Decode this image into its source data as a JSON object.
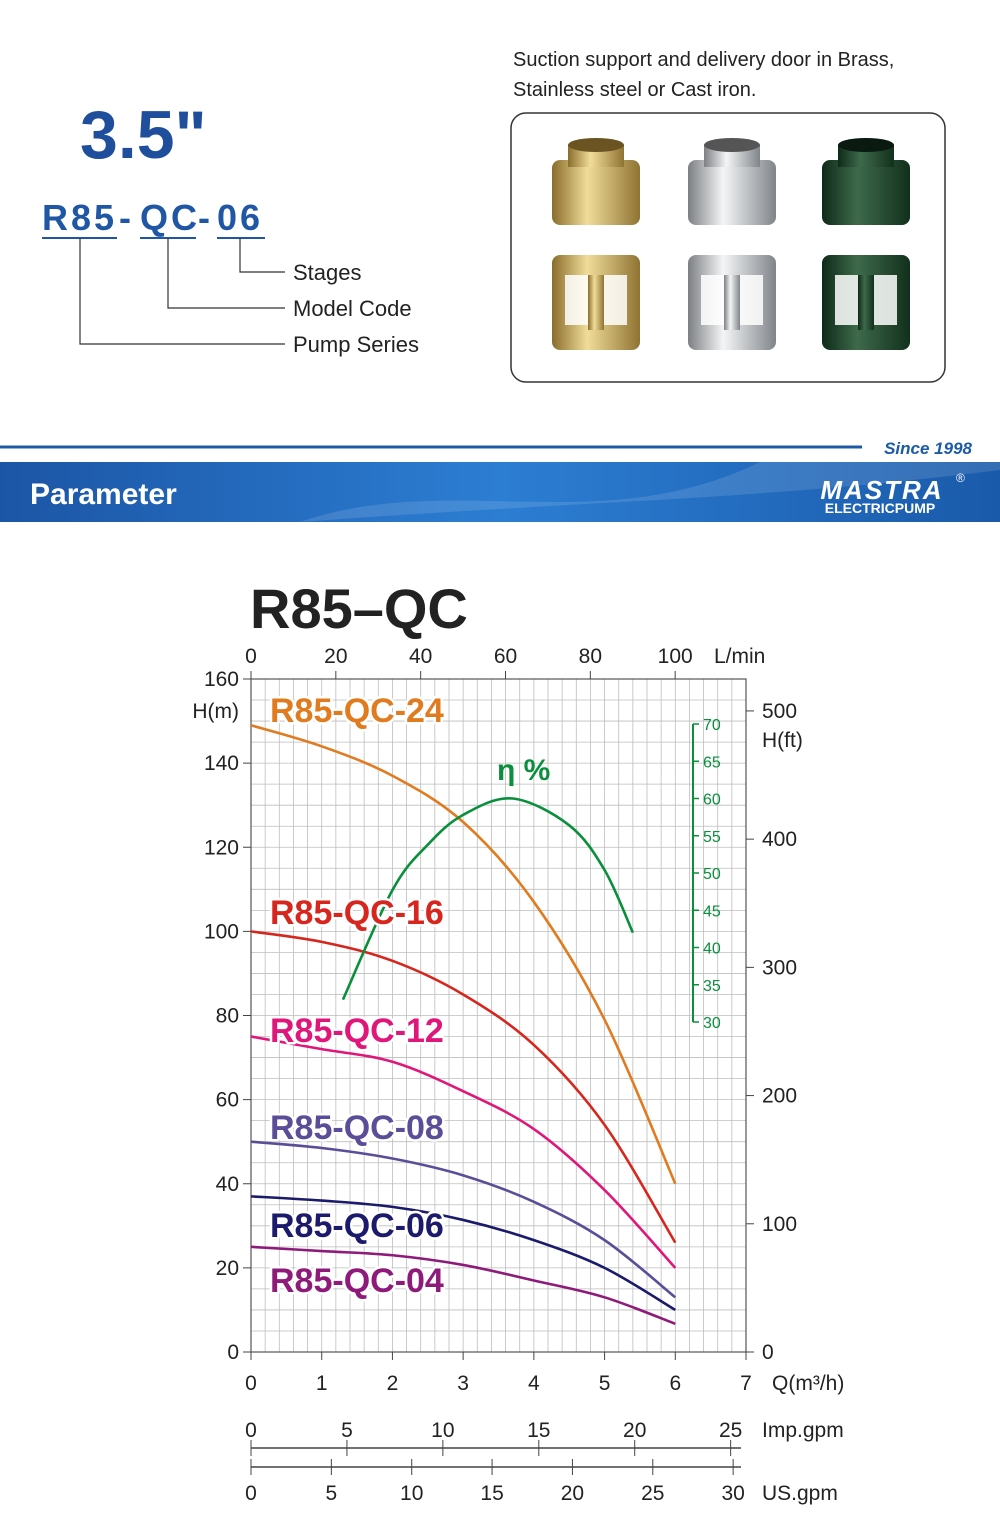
{
  "header": {
    "size": "3.5\"",
    "code_parts": [
      "R85",
      "-",
      "QC",
      "-",
      "06"
    ],
    "code_labels": [
      "Stages",
      "Model Code",
      "Pump Series"
    ],
    "material_text": [
      "Suction support and delivery door in Brass,",
      "Stainless steel or Cast iron."
    ]
  },
  "banner": {
    "since": "Since 1998",
    "title": "Parameter",
    "logo": "MASTRA",
    "logo_sub": "ELECTRICPUMP",
    "registered": "®"
  },
  "chart_data": {
    "type": "line",
    "title": "R85–QC",
    "x": [
      0,
      1,
      2,
      3,
      4,
      5,
      6
    ],
    "xlim": [
      0,
      7
    ],
    "xticks": [
      0,
      1,
      2,
      3,
      4,
      5,
      6,
      7
    ],
    "xlabel": "Q(m³/h)",
    "ylim": [
      0,
      160
    ],
    "yticks": [
      0,
      20,
      40,
      60,
      80,
      100,
      120,
      140,
      160
    ],
    "ylabel": "H(m)",
    "y2lim": [
      0,
      524.9
    ],
    "y2ticks": [
      0,
      100,
      200,
      300,
      400,
      500
    ],
    "y2label": "H(ft)",
    "xminorticks": [
      0,
      0.2,
      0.4,
      0.6,
      0.8,
      1,
      1.2,
      1.4,
      1.6,
      1.8,
      2,
      2.2,
      2.4,
      2.6,
      2.8,
      3,
      3.2,
      3.4,
      3.6,
      3.8,
      4,
      4.2,
      4.4,
      4.6,
      4.8,
      5,
      5.2,
      5.4,
      5.6,
      5.8,
      6,
      6.2,
      6.4,
      6.6,
      6.8,
      7
    ],
    "yminorticks": [
      0,
      5,
      10,
      15,
      20,
      25,
      30,
      35,
      40,
      45,
      50,
      55,
      60,
      65,
      70,
      75,
      80,
      85,
      90,
      95,
      100,
      105,
      110,
      115,
      120,
      125,
      130,
      135,
      140,
      145,
      150,
      155,
      160
    ],
    "grid": true,
    "top_axis": {
      "label": "L/min",
      "lim": [
        0,
        116.7
      ],
      "ticks": [
        0,
        20,
        40,
        60,
        80,
        100
      ]
    },
    "imp_axis": {
      "label": "Imp.gpm",
      "lim": [
        0,
        25.8
      ],
      "ticks": [
        0,
        5,
        10,
        15,
        20,
        25
      ]
    },
    "us_axis": {
      "label": "US.gpm",
      "lim": [
        0,
        30.8
      ],
      "ticks": [
        0,
        5,
        10,
        15,
        20,
        25,
        30
      ]
    },
    "eta_axis": {
      "label": "η %",
      "lim": [
        30,
        70
      ],
      "ticks": [
        30,
        35,
        40,
        45,
        50,
        55,
        60,
        65,
        70
      ],
      "color": "#0a8f3c"
    },
    "series": [
      {
        "name": "R85-QC-24",
        "color": "#e07b1f",
        "values": [
          149,
          144,
          137,
          126,
          107,
          79,
          40
        ]
      },
      {
        "name": "R85-QC-16",
        "color": "#d7261e",
        "values": [
          100,
          97.5,
          93,
          85,
          73,
          54,
          26
        ]
      },
      {
        "name": "R85-QC-12",
        "color": "#e0177a",
        "values": [
          75,
          72,
          69,
          62,
          53,
          38.5,
          20
        ]
      },
      {
        "name": "R85-QC-08",
        "color": "#5b4d97",
        "values": [
          50,
          48.5,
          46,
          42,
          35.7,
          26.6,
          13
        ]
      },
      {
        "name": "R85-QC-06",
        "color": "#1b1a6b",
        "values": [
          37,
          36,
          34.5,
          31.4,
          26.6,
          20,
          10
        ]
      },
      {
        "name": "R85-QC-04",
        "color": "#8e1a7a",
        "values": [
          25,
          24,
          23,
          20.7,
          17,
          13,
          6.7
        ]
      },
      {
        "axis": "eta",
        "color": "#0a8f3c",
        "x": [
          1.3,
          2,
          2.5,
          3,
          3.7,
          4.5,
          5,
          5.4
        ],
        "values": [
          33,
          47.7,
          53.8,
          57.8,
          60,
          56.4,
          50.4,
          42
        ]
      }
    ]
  }
}
